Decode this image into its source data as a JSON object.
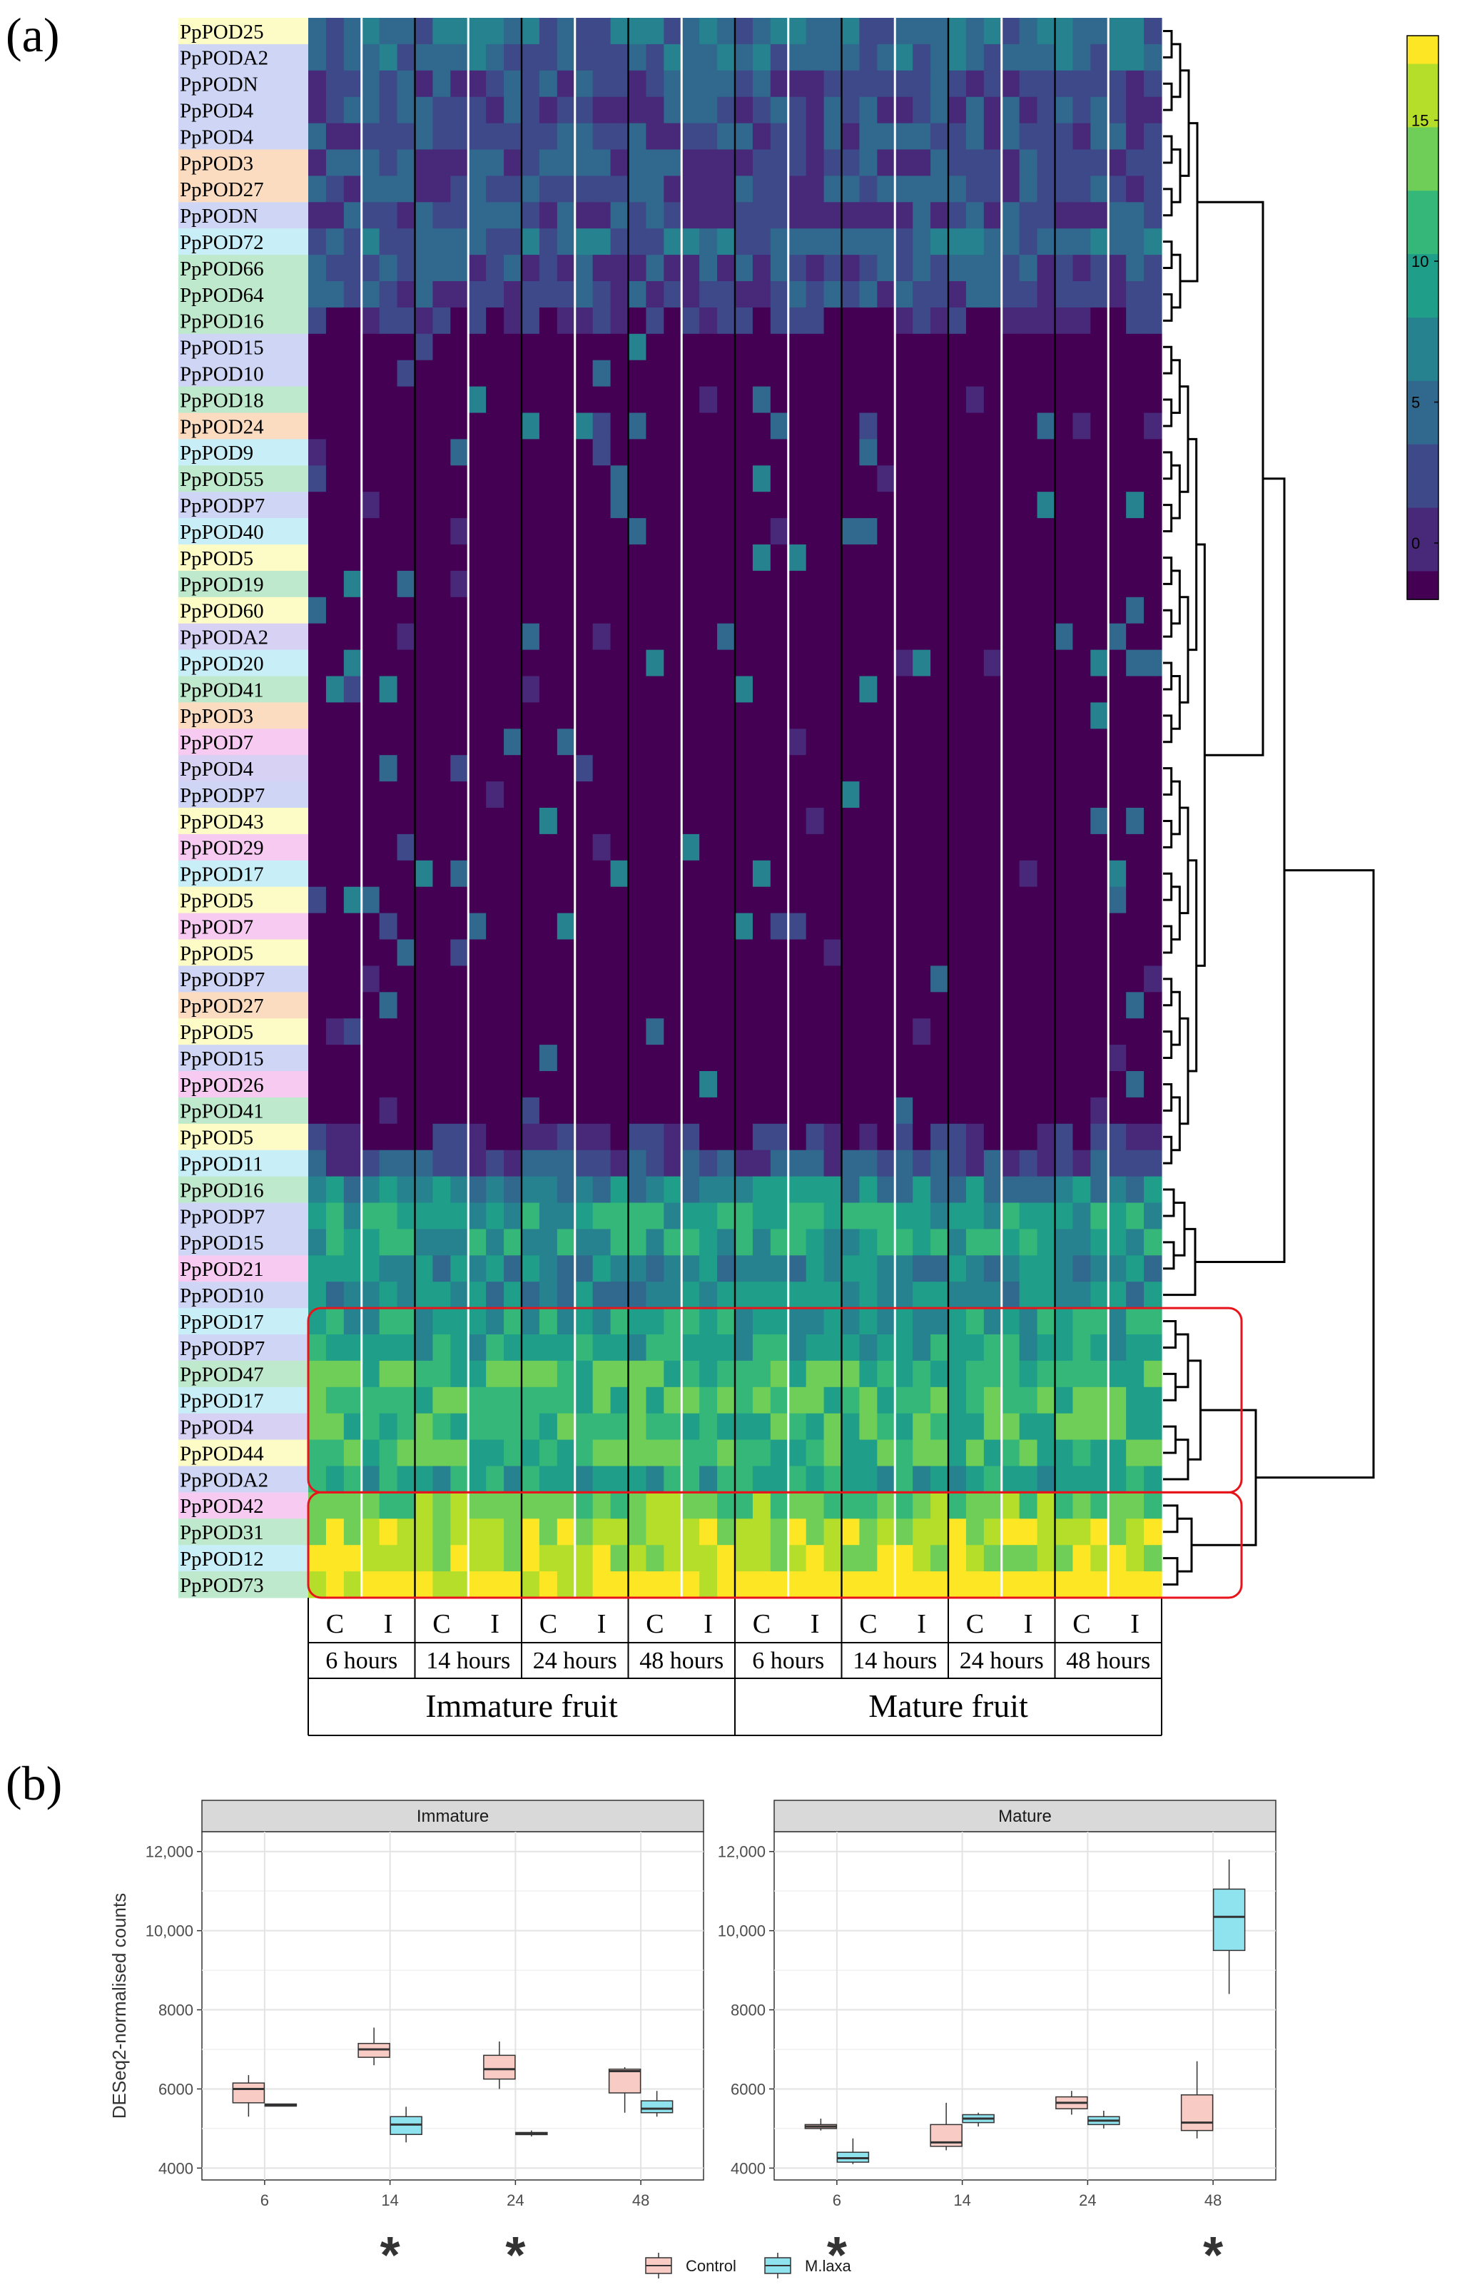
{
  "panel_labels": {
    "a": "(a)",
    "b": "(b)"
  },
  "colors": {
    "viridis": [
      "#440154",
      "#482878",
      "#3e4989",
      "#31688e",
      "#26828e",
      "#1f9e89",
      "#35b779",
      "#6ece58",
      "#b5de2b",
      "#fde725"
    ],
    "highlight_box": "#e8141c",
    "control_fill": "#f8cbc4",
    "mlaxa_fill": "#8fe3ee",
    "family_colors": {
      "yellow": "#fdfbc6",
      "blue": "#cfd6f5",
      "orange": "#fbdcc0",
      "cyan": "#c8eef8",
      "green": "#bfe9cc",
      "pink": "#f7caf2",
      "lavender": "#d7d2f4"
    }
  },
  "chart_data": [
    {
      "type": "heatmap",
      "panel": "(a)",
      "rows": [
        {
          "label": "PpPOD25",
          "family": "yellow",
          "level": 3
        },
        {
          "label": "PpPODA2",
          "family": "blue",
          "level": 3
        },
        {
          "label": "PpPODN",
          "family": "blue",
          "level": 2
        },
        {
          "label": "PpPOD4",
          "family": "blue",
          "level": 2
        },
        {
          "label": "PpPOD4",
          "family": "blue",
          "level": 2
        },
        {
          "label": "PpPOD3",
          "family": "orange",
          "level": 2
        },
        {
          "label": "PpPOD27",
          "family": "orange",
          "level": 2
        },
        {
          "label": "PpPODN",
          "family": "blue",
          "level": 2
        },
        {
          "label": "PpPOD72",
          "family": "cyan",
          "level": 3
        },
        {
          "label": "PpPOD66",
          "family": "green",
          "level": 2
        },
        {
          "label": "PpPOD64",
          "family": "green",
          "level": 2
        },
        {
          "label": "PpPOD16",
          "family": "green",
          "level": 1
        },
        {
          "label": "PpPOD15",
          "family": "blue",
          "level": 0
        },
        {
          "label": "PpPOD10",
          "family": "blue",
          "level": 0
        },
        {
          "label": "PpPOD18",
          "family": "green",
          "level": 0
        },
        {
          "label": "PpPOD24",
          "family": "orange",
          "level": 0
        },
        {
          "label": "PpPOD9",
          "family": "cyan",
          "level": 0
        },
        {
          "label": "PpPOD55",
          "family": "green",
          "level": 0
        },
        {
          "label": "PpPODP7",
          "family": "blue",
          "level": 0
        },
        {
          "label": "PpPOD40",
          "family": "cyan",
          "level": 0
        },
        {
          "label": "PpPOD5",
          "family": "yellow",
          "level": 0
        },
        {
          "label": "PpPOD19",
          "family": "green",
          "level": 0
        },
        {
          "label": "PpPOD60",
          "family": "yellow",
          "level": 0
        },
        {
          "label": "PpPODA2",
          "family": "lavender",
          "level": 0
        },
        {
          "label": "PpPOD20",
          "family": "cyan",
          "level": 0
        },
        {
          "label": "PpPOD41",
          "family": "green",
          "level": 0
        },
        {
          "label": "PpPOD3",
          "family": "orange",
          "level": 0
        },
        {
          "label": "PpPOD7",
          "family": "pink",
          "level": 0
        },
        {
          "label": "PpPOD4",
          "family": "lavender",
          "level": 0
        },
        {
          "label": "PpPODP7",
          "family": "blue",
          "level": 0
        },
        {
          "label": "PpPOD43",
          "family": "yellow",
          "level": 0
        },
        {
          "label": "PpPOD29",
          "family": "pink",
          "level": 0
        },
        {
          "label": "PpPOD17",
          "family": "cyan",
          "level": 0
        },
        {
          "label": "PpPOD5",
          "family": "yellow",
          "level": 0
        },
        {
          "label": "PpPOD7",
          "family": "pink",
          "level": 0
        },
        {
          "label": "PpPOD5",
          "family": "yellow",
          "level": 0
        },
        {
          "label": "PpPODP7",
          "family": "blue",
          "level": 0
        },
        {
          "label": "PpPOD27",
          "family": "orange",
          "level": 0
        },
        {
          "label": "PpPOD5",
          "family": "yellow",
          "level": 0
        },
        {
          "label": "PpPOD15",
          "family": "blue",
          "level": 0
        },
        {
          "label": "PpPOD26",
          "family": "pink",
          "level": 0
        },
        {
          "label": "PpPOD41",
          "family": "green",
          "level": 0
        },
        {
          "label": "PpPOD5",
          "family": "yellow",
          "level": 1
        },
        {
          "label": "PpPOD11",
          "family": "cyan",
          "level": 2
        },
        {
          "label": "PpPOD16",
          "family": "green",
          "level": 4
        },
        {
          "label": "PpPODP7",
          "family": "blue",
          "level": 5
        },
        {
          "label": "PpPOD15",
          "family": "blue",
          "level": 5
        },
        {
          "label": "PpPOD21",
          "family": "pink",
          "level": 4
        },
        {
          "label": "PpPOD10",
          "family": "blue",
          "level": 4
        },
        {
          "label": "PpPOD17",
          "family": "cyan",
          "level": 5
        },
        {
          "label": "PpPODP7",
          "family": "blue",
          "level": 5
        },
        {
          "label": "PpPOD47",
          "family": "green",
          "level": 6
        },
        {
          "label": "PpPOD17",
          "family": "cyan",
          "level": 6
        },
        {
          "label": "PpPOD4",
          "family": "lavender",
          "level": 6
        },
        {
          "label": "PpPOD44",
          "family": "yellow",
          "level": 6
        },
        {
          "label": "PpPODA2",
          "family": "blue",
          "level": 5
        },
        {
          "label": "PpPOD42",
          "family": "pink",
          "level": 7
        },
        {
          "label": "PpPOD31",
          "family": "green",
          "level": 8
        },
        {
          "label": "PpPOD12",
          "family": "cyan",
          "level": 8
        },
        {
          "label": "PpPOD73",
          "family": "green",
          "level": 9
        }
      ],
      "columns_per_condition": 3,
      "treatment_labels": [
        "C",
        "I",
        "C",
        "I",
        "C",
        "I",
        "C",
        "I",
        "C",
        "I",
        "C",
        "I",
        "C",
        "I",
        "C",
        "I"
      ],
      "time_labels": [
        "6 hours",
        "14 hours",
        "24 hours",
        "48 hours",
        "6 hours",
        "14 hours",
        "24 hours",
        "48 hours"
      ],
      "group_labels": [
        "Immature fruit",
        "Mature fruit"
      ],
      "colorbar": {
        "ticks": [
          0,
          5,
          10,
          15
        ],
        "range": [
          -2,
          18
        ]
      },
      "highlighted_row_groups": [
        [
          49,
          55
        ],
        [
          56,
          59
        ]
      ]
    },
    {
      "type": "boxplot",
      "panel": "(b)",
      "ylabel": "DESeq2-normalised counts",
      "ylim": [
        3700,
        12500
      ],
      "yticks": [
        4000,
        6000,
        8000,
        10000,
        12000
      ],
      "ytick_labels": [
        "4000",
        "6000",
        "8000",
        "10,000",
        "12,000"
      ],
      "categories": [
        "6",
        "14",
        "24",
        "48"
      ],
      "legend": [
        "Control",
        "M.laxa"
      ],
      "facets": [
        {
          "title": "Immature",
          "control": [
            {
              "min": 5300,
              "q1": 5650,
              "median": 6000,
              "q3": 6150,
              "max": 6350
            },
            {
              "min": 6600,
              "q1": 6800,
              "median": 7000,
              "q3": 7150,
              "max": 7550
            },
            {
              "min": 6000,
              "q1": 6250,
              "median": 6500,
              "q3": 6850,
              "max": 7200
            },
            {
              "min": 5400,
              "q1": 5900,
              "median": 6450,
              "q3": 6500,
              "max": 6550
            }
          ],
          "mlaxa": [
            {
              "min": 5580,
              "q1": 5580,
              "median": 5600,
              "q3": 5620,
              "max": 5620
            },
            {
              "min": 4650,
              "q1": 4850,
              "median": 5100,
              "q3": 5300,
              "max": 5550
            },
            {
              "min": 4800,
              "q1": 4850,
              "median": 4880,
              "q3": 4900,
              "max": 4950
            },
            {
              "min": 5300,
              "q1": 5400,
              "median": 5500,
              "q3": 5700,
              "max": 5950
            }
          ],
          "significant": [
            "14",
            "24"
          ]
        },
        {
          "title": "Mature",
          "control": [
            {
              "min": 4950,
              "q1": 5000,
              "median": 5050,
              "q3": 5100,
              "max": 5250
            },
            {
              "min": 4450,
              "q1": 4550,
              "median": 4650,
              "q3": 5100,
              "max": 5650
            },
            {
              "min": 5350,
              "q1": 5500,
              "median": 5650,
              "q3": 5800,
              "max": 5950
            },
            {
              "min": 4750,
              "q1": 4950,
              "median": 5150,
              "q3": 5850,
              "max": 6700
            }
          ],
          "mlaxa": [
            {
              "min": 4100,
              "q1": 4150,
              "median": 4250,
              "q3": 4400,
              "max": 4750
            },
            {
              "min": 5050,
              "q1": 5150,
              "median": 5250,
              "q3": 5350,
              "max": 5400
            },
            {
              "min": 5000,
              "q1": 5100,
              "median": 5200,
              "q3": 5300,
              "max": 5450
            },
            {
              "min": 8400,
              "q1": 9500,
              "median": 10350,
              "q3": 11050,
              "max": 11800
            }
          ],
          "significant": [
            "6",
            "48"
          ]
        }
      ],
      "significance_marker": "*"
    }
  ]
}
